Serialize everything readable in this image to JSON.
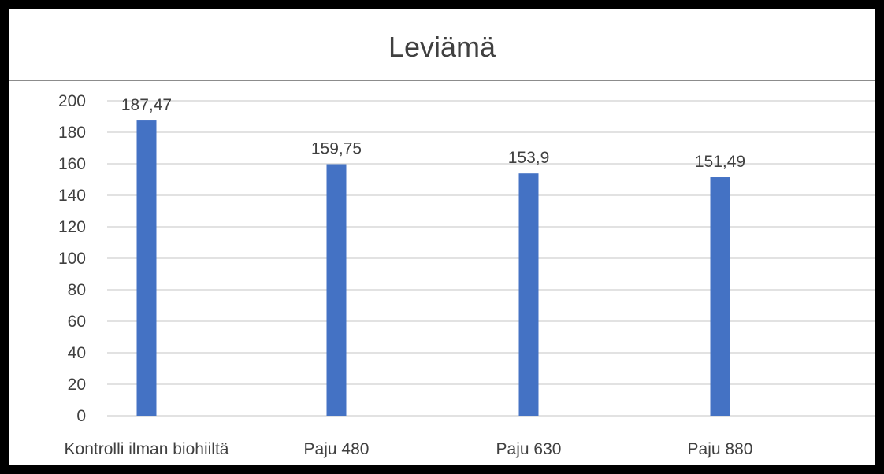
{
  "chart_data": {
    "type": "bar",
    "title": "Leviämä",
    "xlabel": "",
    "ylabel": "",
    "categories": [
      "Kontrolli ilman biohiiltä",
      "Paju 480",
      "Paju 630",
      "Paju 880"
    ],
    "values": [
      187.47,
      159.75,
      153.9,
      151.49
    ],
    "data_labels": [
      "187,47",
      "159,75",
      "153,9",
      "151,49"
    ],
    "yticks": [
      0,
      20,
      40,
      60,
      80,
      100,
      120,
      140,
      160,
      180,
      200
    ],
    "ylim": [
      0,
      200
    ],
    "grid": true,
    "legend": "none",
    "bar_color": "#4472c4",
    "grid_color": "#d9d9d9",
    "text_color": "#404040"
  }
}
